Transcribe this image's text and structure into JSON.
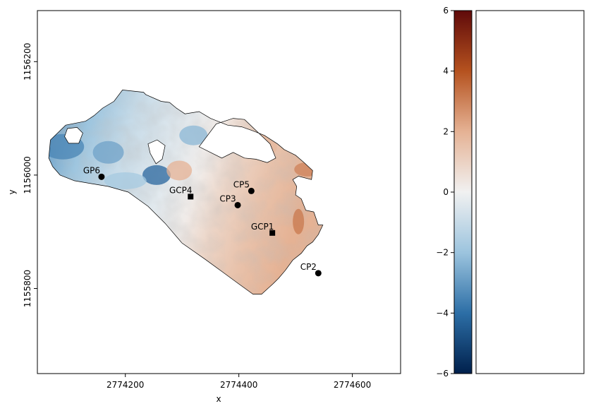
{
  "chart_data": [
    {
      "type": "scatter",
      "xlabel": "x",
      "ylabel": "y",
      "xlim": [
        2774045,
        2774685
      ],
      "ylim": [
        1155650,
        1156290
      ],
      "xticks": [
        2774200,
        2774400,
        2774600
      ],
      "yticks": [
        1155800,
        1156000,
        1156200
      ],
      "xtick_labels": [
        "2774200",
        "2774400",
        "2774600"
      ],
      "ytick_labels": [
        "1155800",
        "1156000",
        "1156200"
      ],
      "points": [
        {
          "label": "GP6",
          "x": 2774158,
          "y": 1155997,
          "marker": "circle"
        },
        {
          "label": "GCP4",
          "x": 2774315,
          "y": 1155962,
          "marker": "square"
        },
        {
          "label": "CP5",
          "x": 2774422,
          "y": 1155972,
          "marker": "circle"
        },
        {
          "label": "CP3",
          "x": 2774398,
          "y": 1155947,
          "marker": "circle"
        },
        {
          "label": "GCP1",
          "x": 2774459,
          "y": 1155898,
          "marker": "square"
        },
        {
          "label": "CP2",
          "x": 2774540,
          "y": 1155827,
          "marker": "circle"
        }
      ],
      "outline": [
        [
          2774065,
          1156030
        ],
        [
          2774068,
          1156062
        ],
        [
          2774095,
          1156088
        ],
        [
          2774130,
          1156095
        ],
        [
          2774145,
          1156105
        ],
        [
          2774160,
          1156118
        ],
        [
          2774180,
          1156130
        ],
        [
          2774195,
          1156150
        ],
        [
          2774232,
          1156146
        ],
        [
          2774236,
          1156142
        ],
        [
          2774263,
          1156130
        ],
        [
          2774278,
          1156128
        ],
        [
          2774290,
          1156118
        ],
        [
          2774305,
          1156108
        ],
        [
          2774330,
          1156112
        ],
        [
          2774350,
          1156100
        ],
        [
          2774380,
          1156088
        ],
        [
          2774405,
          1156085
        ],
        [
          2774425,
          1156078
        ],
        [
          2774445,
          1156070
        ],
        [
          2774468,
          1156055
        ],
        [
          2774480,
          1156045
        ],
        [
          2774500,
          1156035
        ],
        [
          2774515,
          1156022
        ],
        [
          2774530,
          1156008
        ],
        [
          2774528,
          1155992
        ],
        [
          2774505,
          1155998
        ],
        [
          2774495,
          1155992
        ],
        [
          2774502,
          1155980
        ],
        [
          2774500,
          1155965
        ],
        [
          2774510,
          1155958
        ],
        [
          2774518,
          1155938
        ],
        [
          2774532,
          1155935
        ],
        [
          2774540,
          1155912
        ],
        [
          2774548,
          1155912
        ],
        [
          2774540,
          1155895
        ],
        [
          2774530,
          1155882
        ],
        [
          2774520,
          1155875
        ],
        [
          2774510,
          1155862
        ],
        [
          2774495,
          1155850
        ],
        [
          2774482,
          1155832
        ],
        [
          2774470,
          1155818
        ],
        [
          2774460,
          1155808
        ],
        [
          2774440,
          1155790
        ],
        [
          2774425,
          1155790
        ],
        [
          2774400,
          1155808
        ],
        [
          2774370,
          1155830
        ],
        [
          2774340,
          1155852
        ],
        [
          2774300,
          1155880
        ],
        [
          2774270,
          1155915
        ],
        [
          2774240,
          1155945
        ],
        [
          2774205,
          1155970
        ],
        [
          2774170,
          1155980
        ],
        [
          2774140,
          1155985
        ],
        [
          2774110,
          1155990
        ],
        [
          2774085,
          1156000
        ],
        [
          2774072,
          1156015
        ]
      ],
      "holes": [
        [
          [
            2774098,
            1156082
          ],
          [
            2774115,
            1156084
          ],
          [
            2774125,
            1156074
          ],
          [
            2774118,
            1156056
          ],
          [
            2774100,
            1156056
          ],
          [
            2774093,
            1156068
          ]
        ],
        [
          [
            2774240,
            1156055
          ],
          [
            2774256,
            1156062
          ],
          [
            2774270,
            1156052
          ],
          [
            2774265,
            1156028
          ],
          [
            2774254,
            1156020
          ],
          [
            2774244,
            1156038
          ]
        ],
        [
          [
            2774330,
            1156050
          ],
          [
            2774360,
            1156090
          ],
          [
            2774390,
            1156100
          ],
          [
            2774410,
            1156098
          ],
          [
            2774455,
            1156055
          ],
          [
            2774465,
            1156030
          ],
          [
            2774450,
            1156022
          ],
          [
            2774430,
            1156028
          ],
          [
            2774410,
            1156030
          ],
          [
            2774390,
            1156040
          ],
          [
            2774370,
            1156030
          ]
        ]
      ],
      "series_color": "#000000"
    },
    {
      "type": "histogram",
      "ylim": [
        -6,
        6
      ],
      "yticks": [
        -6,
        -4,
        -2,
        0,
        2,
        4,
        6
      ],
      "ytick_labels": [
        "−6",
        "−4",
        "−2",
        "0",
        "2",
        "4",
        "6"
      ],
      "distribution": {
        "peak": 0.0,
        "left_sigma": 1.15,
        "right_sigma": 0.85,
        "max_value": 1.0,
        "range": [
          -5.2,
          4.5
        ]
      }
    }
  ],
  "colormap": {
    "name": "diverging-blue-red",
    "stops": [
      "#00204c",
      "#2c6ea6",
      "#9cc4de",
      "#f1f1f1",
      "#e5b294",
      "#b5521f",
      "#5f0a0a"
    ],
    "vmin": -6,
    "vmax": 6
  }
}
